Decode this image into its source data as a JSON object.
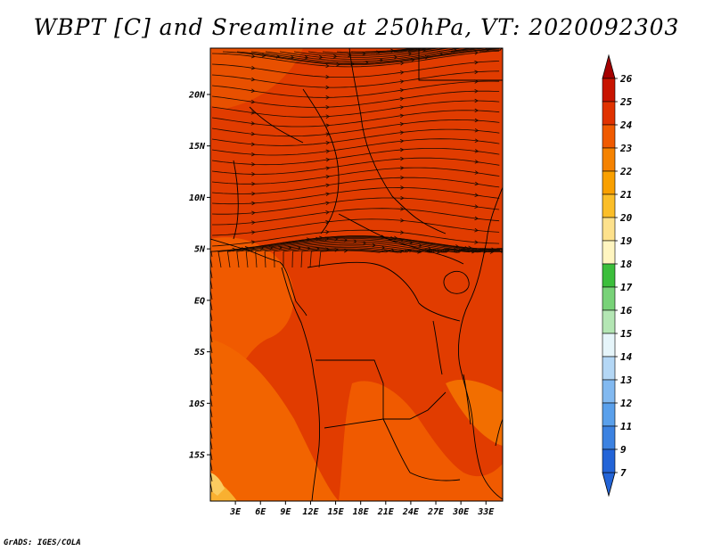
{
  "title": "WBPT [C] and Sreamline at 250hPa, VT: 2020092303",
  "credit": "GrADS: IGES/COLA",
  "map": {
    "lon_range": [
      0,
      35
    ],
    "lat_range": [
      -19.5,
      24.5
    ],
    "lat_ticks": [
      {
        "value": 20,
        "label": "20N"
      },
      {
        "value": 15,
        "label": "15N"
      },
      {
        "value": 10,
        "label": "10N"
      },
      {
        "value": 5,
        "label": "5N"
      },
      {
        "value": 0,
        "label": "EQ"
      },
      {
        "value": -5,
        "label": "5S"
      },
      {
        "value": -10,
        "label": "10S"
      },
      {
        "value": -15,
        "label": "15S"
      }
    ],
    "lon_ticks": [
      {
        "value": 3,
        "label": "3E"
      },
      {
        "value": 6,
        "label": "6E"
      },
      {
        "value": 9,
        "label": "9E"
      },
      {
        "value": 12,
        "label": "12E"
      },
      {
        "value": 15,
        "label": "15E"
      },
      {
        "value": 18,
        "label": "18E"
      },
      {
        "value": 21,
        "label": "21E"
      },
      {
        "value": 24,
        "label": "24E"
      },
      {
        "value": 27,
        "label": "27E"
      },
      {
        "value": 30,
        "label": "30E"
      },
      {
        "value": 33,
        "label": "33E"
      }
    ]
  },
  "colorbar": {
    "labels": [
      "26",
      "25",
      "24",
      "23",
      "22",
      "21",
      "20",
      "19",
      "18",
      "17",
      "16",
      "15",
      "14",
      "13",
      "12",
      "11",
      "9",
      "7"
    ],
    "colors": [
      "#a50000",
      "#c81400",
      "#e03200",
      "#f05a00",
      "#f58200",
      "#f9a000",
      "#fbbe28",
      "#fde18c",
      "#fff5c0",
      "#3cbe3c",
      "#78d278",
      "#b4e6b4",
      "#e6f5fa",
      "#b4d7f5",
      "#82b9f0",
      "#5aa0eb",
      "#3c82e1",
      "#2364d7"
    ],
    "top_arrow_color": "#a50000",
    "bottom_arrow_color": "#2364d7"
  }
}
